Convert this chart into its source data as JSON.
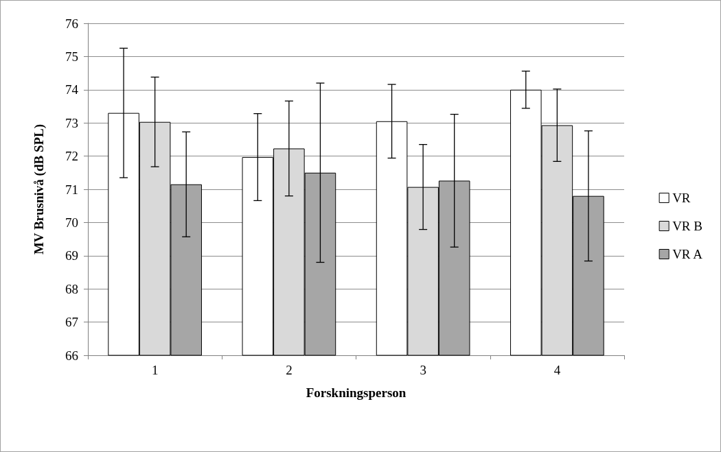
{
  "chart_data": {
    "type": "bar",
    "xlabel": "Forskningsperson",
    "ylabel": "MV Brusnivå (dB SPL)",
    "categories": [
      "1",
      "2",
      "3",
      "4"
    ],
    "series": [
      {
        "name": "VR",
        "color": "#ffffff",
        "values": [
          73.3,
          71.97,
          73.05,
          74.0
        ],
        "errors": [
          1.95,
          1.31,
          1.11,
          0.56
        ]
      },
      {
        "name": "VR B",
        "color": "#d9d9d9",
        "values": [
          73.03,
          72.23,
          71.07,
          72.93
        ],
        "errors": [
          1.35,
          1.43,
          1.28,
          1.09
        ]
      },
      {
        "name": "VR A",
        "color": "#a6a6a6",
        "values": [
          71.15,
          71.5,
          71.26,
          70.8
        ],
        "errors": [
          1.58,
          2.7,
          2.0,
          1.96
        ]
      }
    ],
    "ylim": [
      66,
      76
    ],
    "yticks": [
      66,
      67,
      68,
      69,
      70,
      71,
      72,
      73,
      74,
      75,
      76
    ],
    "grid": "y",
    "legend": "right"
  }
}
